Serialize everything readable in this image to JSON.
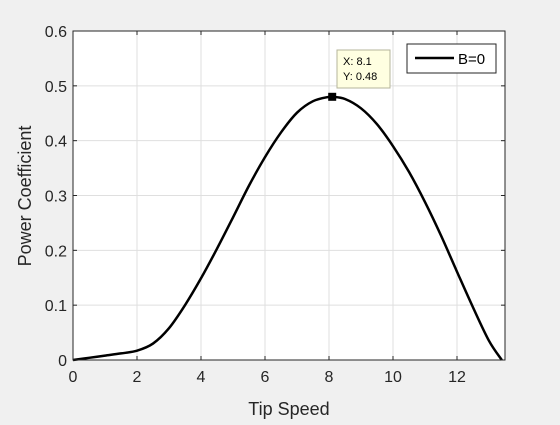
{
  "chart_data": {
    "type": "line",
    "title": "",
    "xlabel": "Tip Speed",
    "ylabel": "Power Coefficient",
    "xlim": [
      0,
      13.5
    ],
    "ylim": [
      0,
      0.6
    ],
    "xticks": [
      0,
      2,
      4,
      6,
      8,
      10,
      12
    ],
    "yticks": [
      0,
      0.1,
      0.2,
      0.3,
      0.4,
      0.5,
      0.6
    ],
    "xtick_labels": [
      "0",
      "2",
      "4",
      "6",
      "8",
      "10",
      "12"
    ],
    "ytick_labels": [
      "0",
      "0.1",
      "0.2",
      "0.3",
      "0.4",
      "0.5",
      "0.6"
    ],
    "grid": true,
    "legend_position": "top-right",
    "series": [
      {
        "name": "B=0",
        "color": "#000000",
        "x": [
          0,
          0.5,
          1,
          1.5,
          2,
          2.5,
          3,
          3.5,
          4,
          4.5,
          5,
          5.5,
          6,
          6.5,
          7,
          7.5,
          8,
          8.1,
          8.5,
          9,
          9.5,
          10,
          10.5,
          11,
          11.5,
          12,
          12.5,
          13,
          13.4
        ],
        "y": [
          0,
          0.004,
          0.008,
          0.012,
          0.017,
          0.03,
          0.058,
          0.1,
          0.149,
          0.203,
          0.26,
          0.318,
          0.37,
          0.415,
          0.451,
          0.472,
          0.48,
          0.48,
          0.476,
          0.459,
          0.43,
          0.39,
          0.343,
          0.288,
          0.227,
          0.161,
          0.096,
          0.035,
          0
        ]
      }
    ],
    "datatip": {
      "x_label": "X: 8.1",
      "y_label": "Y: 0.48",
      "x": 8.1,
      "y": 0.48
    }
  }
}
